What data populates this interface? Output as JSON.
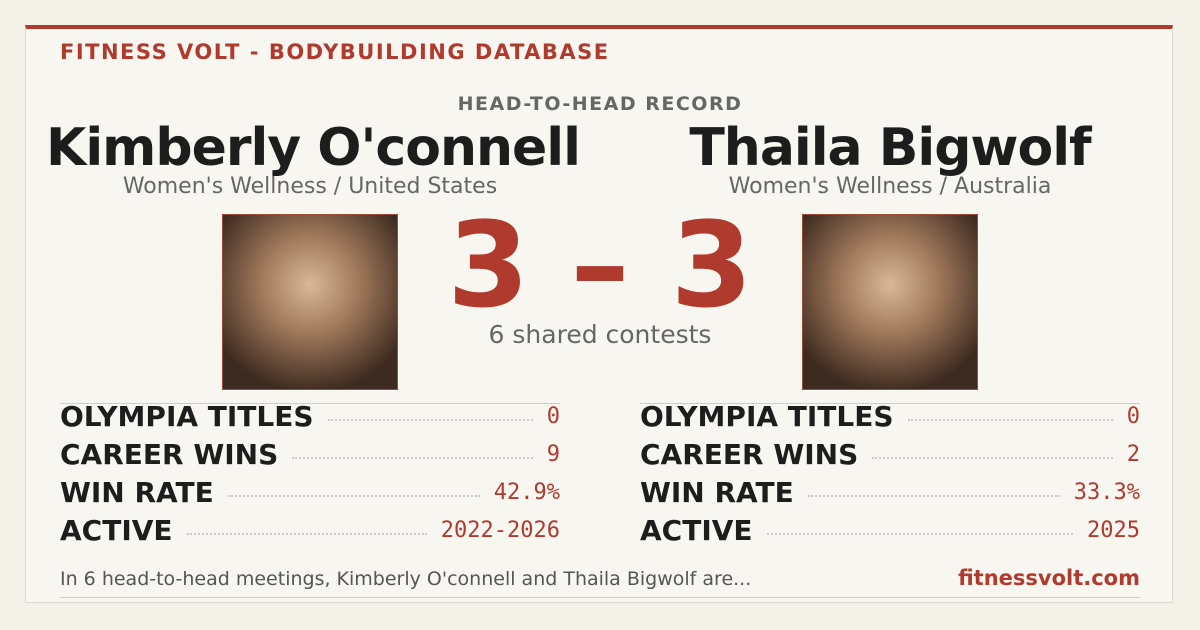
{
  "header": {
    "brand": "FITNESS VOLT - BODYBUILDING DATABASE",
    "section": "HEAD-TO-HEAD RECORD"
  },
  "competitors": [
    {
      "name": "Kimberly O'connell",
      "subtitle": "Women's Wellness / United States",
      "stats": [
        {
          "label": "OLYMPIA TITLES",
          "value": "0"
        },
        {
          "label": "CAREER WINS",
          "value": "9"
        },
        {
          "label": "WIN RATE",
          "value": "42.9%"
        },
        {
          "label": "ACTIVE",
          "value": "2022-2026"
        }
      ]
    },
    {
      "name": "Thaila Bigwolf",
      "subtitle": "Women's Wellness / Australia",
      "stats": [
        {
          "label": "OLYMPIA TITLES",
          "value": "0"
        },
        {
          "label": "CAREER WINS",
          "value": "2"
        },
        {
          "label": "WIN RATE",
          "value": "33.3%"
        },
        {
          "label": "ACTIVE",
          "value": "2025"
        }
      ]
    }
  ],
  "score": {
    "left": "3",
    "separator": "–",
    "right": "3",
    "caption": "6 shared contests"
  },
  "footer": {
    "summary": "In 6 head-to-head meetings, Kimberly O'connell and Thaila Bigwolf are...",
    "site": "fitnessvolt.com"
  }
}
